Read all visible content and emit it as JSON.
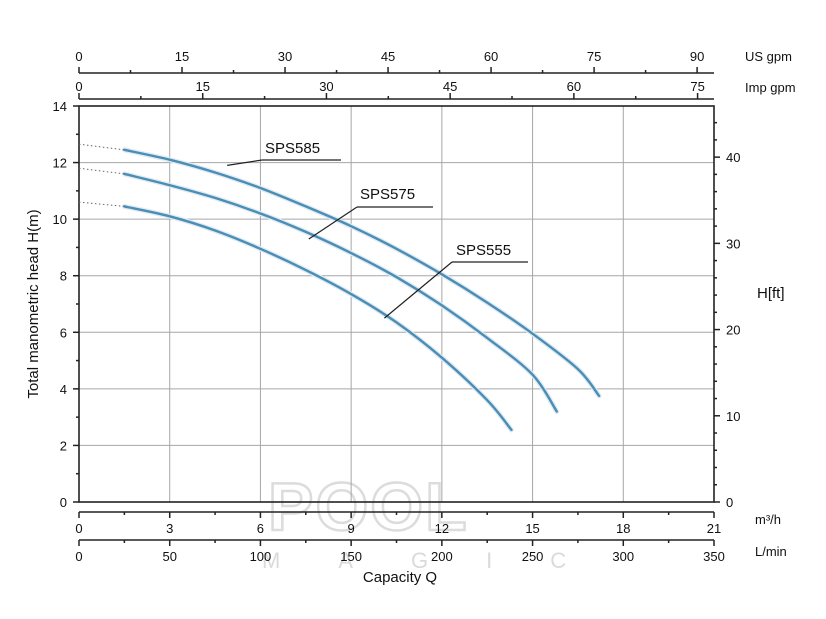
{
  "chart_data": {
    "type": "line",
    "xlabel": "Capacity Q",
    "ylabel": "Total manometric head H(m)",
    "xlim": [
      0,
      21
    ],
    "ylim": [
      0,
      14
    ],
    "x_unit": "m³/h",
    "x_ticks": [
      0,
      3,
      6,
      9,
      12,
      15,
      18,
      21
    ],
    "y_ticks": [
      0,
      2,
      4,
      6,
      8,
      10,
      12,
      14
    ],
    "grid": true,
    "secondary_axes": {
      "lmin": {
        "unit": "L/min",
        "ticks": [
          0,
          50,
          100,
          150,
          200,
          250,
          300,
          350
        ]
      },
      "us_gpm": {
        "unit": "US gpm",
        "ticks": [
          0,
          15,
          30,
          45,
          60,
          75,
          90
        ]
      },
      "imp_gpm": {
        "unit": "Imp gpm",
        "ticks": [
          0,
          15,
          30,
          45,
          60,
          75
        ]
      },
      "h_ft": {
        "unit": "H[ft]",
        "ticks": [
          0,
          10,
          20,
          30,
          40
        ]
      }
    },
    "series_color": "#4a8db5",
    "series": [
      {
        "name": "SPS585",
        "label_text": "SPS585",
        "dotted_start": {
          "x": 0,
          "y": 12.65
        },
        "x": [
          1.5,
          3,
          4.5,
          6,
          7.5,
          9,
          10.5,
          12,
          13.5,
          15,
          16.5,
          17.2
        ],
        "values": [
          12.45,
          12.1,
          11.65,
          11.1,
          10.45,
          9.75,
          8.95,
          8.05,
          7.05,
          5.95,
          4.7,
          3.75
        ],
        "label_anchor": [
          4.9,
          11.9
        ]
      },
      {
        "name": "SPS575",
        "label_text": "SPS575",
        "dotted_start": {
          "x": 0,
          "y": 11.8
        },
        "x": [
          1.5,
          3,
          4.5,
          6,
          7.5,
          9,
          10.5,
          12,
          13.5,
          15,
          15.8
        ],
        "values": [
          11.6,
          11.2,
          10.75,
          10.2,
          9.55,
          8.8,
          7.95,
          6.95,
          5.8,
          4.5,
          3.2
        ],
        "label_anchor": [
          7.6,
          9.3
        ]
      },
      {
        "name": "SPS555",
        "label_text": "SPS555",
        "dotted_start": {
          "x": 0,
          "y": 10.6
        },
        "x": [
          1.5,
          3,
          4.5,
          6,
          7.5,
          9,
          10.5,
          12,
          13.5,
          14.3
        ],
        "values": [
          10.45,
          10.1,
          9.6,
          8.95,
          8.2,
          7.35,
          6.35,
          5.1,
          3.6,
          2.55
        ],
        "label_anchor": [
          10.1,
          6.5
        ]
      }
    ]
  },
  "watermark": {
    "main": "POOL",
    "sub": "MAGIC"
  }
}
